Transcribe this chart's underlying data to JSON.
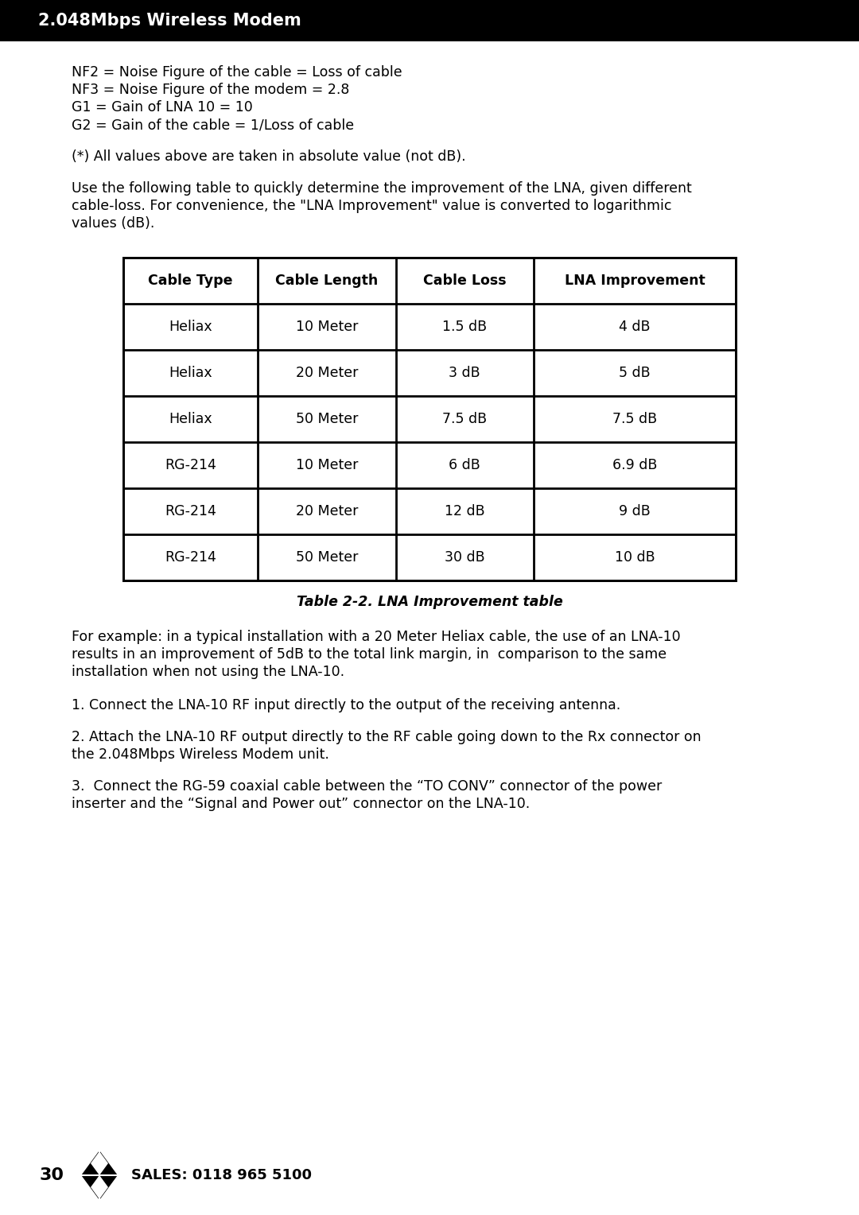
{
  "page_bg": "#ffffff",
  "header_bg": "#000000",
  "header_text": "2.048Mbps Wireless Modem",
  "header_text_color": "#ffffff",
  "header_fontsize": 15,
  "body_fontsize": 12.5,
  "body_text_color": "#000000",
  "content_lines_above": [
    "NF2 = Noise Figure of the cable = Loss of cable",
    "NF3 = Noise Figure of the modem = 2.8",
    "G1 = Gain of LNA 10 = 10",
    "G2 = Gain of the cable = 1/Loss of cable"
  ],
  "note_line": "(*) All values above are taken in absolute value (not dB).",
  "intro_lines": [
    "Use the following table to quickly determine the improvement of the LNA, given different",
    "cable-loss. For convenience, the \"LNA Improvement\" value is converted to logarithmic",
    "values (dB)."
  ],
  "table_headers": [
    "Cable Type",
    "Cable Length",
    "Cable Loss",
    "LNA Improvement"
  ],
  "table_rows": [
    [
      "Heliax",
      "10 Meter",
      "1.5 dB",
      "4 dB"
    ],
    [
      "Heliax",
      "20 Meter",
      "3 dB",
      "5 dB"
    ],
    [
      "Heliax",
      "50 Meter",
      "7.5 dB",
      "7.5 dB"
    ],
    [
      "RG-214",
      "10 Meter",
      "6 dB",
      "6.9 dB"
    ],
    [
      "RG-214",
      "20 Meter",
      "12 dB",
      "9 dB"
    ],
    [
      "RG-214",
      "50 Meter",
      "30 dB",
      "10 dB"
    ]
  ],
  "table_caption": "Table 2-2. LNA Improvement table",
  "para0_lines": [
    "For example: in a typical installation with a 20 Meter Heliax cable, the use of an LNA-10",
    "results in an improvement of 5dB to the total link margin, in  comparison to the same",
    "installation when not using the LNA-10."
  ],
  "para1_lines": [
    "1. Connect the LNA-10 RF input directly to the output of the receiving antenna."
  ],
  "para2_lines": [
    "2. Attach the LNA-10 RF output directly to the RF cable going down to the Rx connector on",
    "the 2.048Mbps Wireless Modem unit."
  ],
  "para3_lines": [
    "3.  Connect the RG-59 coaxial cable between the “TO CONV” connector of the power",
    "inserter and the “Signal and Power out” connector on the LNA-10."
  ],
  "footer_page": "30",
  "footer_sales": "SALES: 0118 965 5100"
}
